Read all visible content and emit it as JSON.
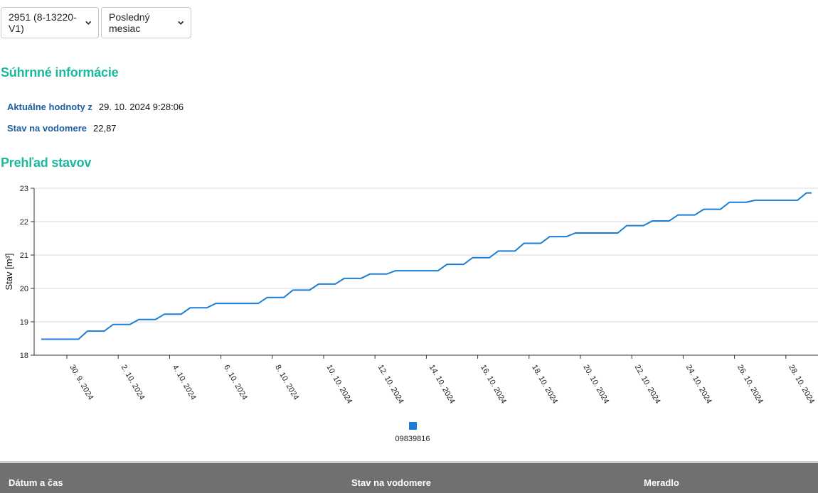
{
  "filters": {
    "device": "2951 (8-13220-V1)",
    "period": "Posledný mesiac"
  },
  "summary": {
    "title": "Súhrnné informácie",
    "current_label": "Aktuálne hodnoty z",
    "current_value": "29. 10. 2024 9:28:06",
    "meter_label": "Stav na vodomere",
    "meter_value": "22,87"
  },
  "overview": {
    "title": "Prehľad stavov"
  },
  "chart_data": {
    "type": "line",
    "ylabel": "Stav [m³]",
    "xlabel": "",
    "ylim": [
      18,
      23
    ],
    "yticks": [
      "18",
      "19",
      "20",
      "21",
      "22",
      "23"
    ],
    "xticks": [
      "30. 9. 2024",
      "2. 10. 2024",
      "4. 10. 2024",
      "6. 10. 2024",
      "8. 10. 2024",
      "10. 10. 2024",
      "12. 10. 2024",
      "14. 10. 2024",
      "16. 10. 2024",
      "18. 10. 2024",
      "20. 10. 2024",
      "22. 10. 2024",
      "24. 10. 2024",
      "26. 10. 2024",
      "28. 10. 2024"
    ],
    "grid": true,
    "legend": "bottom",
    "color": "#1a7fd4",
    "series": [
      {
        "name": "09839816",
        "x": [
          "2024-09-29",
          "2024-09-30",
          "2024-10-01",
          "2024-10-02",
          "2024-10-03",
          "2024-10-04",
          "2024-10-05",
          "2024-10-06",
          "2024-10-07",
          "2024-10-08",
          "2024-10-09",
          "2024-10-10",
          "2024-10-11",
          "2024-10-12",
          "2024-10-13",
          "2024-10-14",
          "2024-10-15",
          "2024-10-16",
          "2024-10-17",
          "2024-10-18",
          "2024-10-19",
          "2024-10-20",
          "2024-10-21",
          "2024-10-22",
          "2024-10-23",
          "2024-10-24",
          "2024-10-25",
          "2024-10-26",
          "2024-10-27",
          "2024-10-28",
          "2024-10-29"
        ],
        "values": [
          18.48,
          18.48,
          18.72,
          18.92,
          19.07,
          19.23,
          19.42,
          19.55,
          19.55,
          19.73,
          19.95,
          20.13,
          20.3,
          20.43,
          20.53,
          20.53,
          20.72,
          20.92,
          21.12,
          21.35,
          21.55,
          21.66,
          21.66,
          21.88,
          22.02,
          22.2,
          22.37,
          22.58,
          22.64,
          22.64,
          22.86
        ]
      }
    ]
  },
  "table": {
    "columns": [
      "Dátum a čas",
      "Stav na vodomere",
      "Meradlo"
    ]
  }
}
